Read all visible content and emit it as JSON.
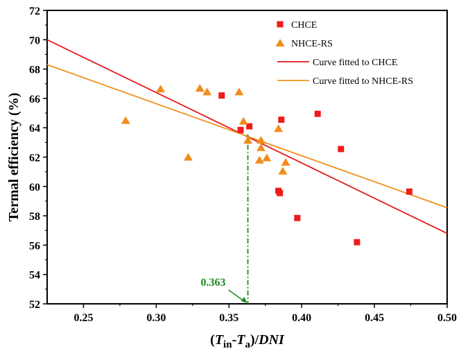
{
  "chart_data": {
    "type": "scatter",
    "xlabel": "(Tin-Ta)/DNI",
    "ylabel": "Termal efficiency (%)",
    "xlim": [
      0.225,
      0.5
    ],
    "ylim": [
      52,
      72
    ],
    "xticks": [
      0.25,
      0.3,
      0.35,
      0.4,
      0.45,
      0.5
    ],
    "xtick_labels": [
      "0.25",
      "0.30",
      "0.35",
      "0.40",
      "0.45",
      "0.50"
    ],
    "yticks": [
      52,
      54,
      56,
      58,
      60,
      62,
      64,
      66,
      68,
      70,
      72
    ],
    "ytick_labels": [
      "52",
      "54",
      "56",
      "58",
      "60",
      "62",
      "64",
      "66",
      "68",
      "70",
      "72"
    ],
    "grid": false,
    "legend_position": "top-right",
    "series": [
      {
        "name": "CHCE",
        "kind": "points",
        "marker": "square",
        "color": "#ee1c1c",
        "points": [
          [
            0.345,
            66.2
          ],
          [
            0.358,
            63.85
          ],
          [
            0.364,
            64.1
          ],
          [
            0.384,
            59.7
          ],
          [
            0.385,
            59.55
          ],
          [
            0.386,
            64.55
          ],
          [
            0.397,
            57.85
          ],
          [
            0.411,
            64.95
          ],
          [
            0.427,
            62.55
          ],
          [
            0.438,
            56.2
          ],
          [
            0.474,
            59.65
          ]
        ]
      },
      {
        "name": "NHCE-RS",
        "kind": "points",
        "marker": "triangle",
        "color": "#f28c1c",
        "points": [
          [
            0.279,
            64.5
          ],
          [
            0.303,
            66.65
          ],
          [
            0.322,
            62.0
          ],
          [
            0.33,
            66.7
          ],
          [
            0.335,
            66.45
          ],
          [
            0.357,
            66.45
          ],
          [
            0.36,
            64.45
          ],
          [
            0.363,
            63.15
          ],
          [
            0.371,
            61.8
          ],
          [
            0.372,
            62.65
          ],
          [
            0.372,
            63.15
          ],
          [
            0.376,
            61.95
          ],
          [
            0.384,
            63.95
          ],
          [
            0.387,
            61.05
          ],
          [
            0.389,
            61.65
          ]
        ]
      },
      {
        "name": "Curve fitted  to CHCE",
        "kind": "line",
        "color": "#e31a1c",
        "points": [
          [
            0.225,
            70.0
          ],
          [
            0.5,
            56.8
          ]
        ]
      },
      {
        "name": "Curve fitted to NHCE-RS",
        "kind": "line",
        "color": "#f0921c",
        "points": [
          [
            0.225,
            68.3
          ],
          [
            0.5,
            58.55
          ]
        ]
      }
    ],
    "annotations": [
      {
        "text": "0.363",
        "color": "#1a8a1a",
        "x": 0.363,
        "y": 63.55
      }
    ]
  },
  "axis_title_x": {
    "open": "(",
    "t1": "T",
    "s1": "in",
    "dash": "-",
    "t2": "T",
    "s2": "a",
    "close": ")/",
    "dni": "DNI"
  }
}
